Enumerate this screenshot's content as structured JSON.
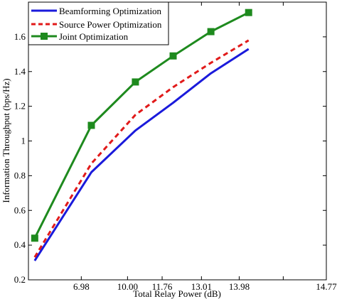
{
  "chart_data": {
    "type": "line",
    "xlabel": "Total Relay Power (dB)",
    "ylabel": "Information Throughput (bps/Hz)",
    "xlim": [
      5.3,
      14.77
    ],
    "ylim": [
      0.2,
      1.8
    ],
    "xticks": [
      {
        "value": 6.98,
        "label": "6.98"
      },
      {
        "value": 8.45,
        "label": "10.00"
      },
      {
        "value": 9.55,
        "label": "11.76"
      },
      {
        "value": 10.8,
        "label": "13.01"
      },
      {
        "value": 12.0,
        "label": "13.98"
      },
      {
        "value": 13.4,
        "label": "14.77"
      }
    ],
    "yticks": [
      0.2,
      0.4,
      0.6,
      0.8,
      1.0,
      1.2,
      1.4,
      1.6
    ],
    "ytick_labels": [
      "0.2",
      "0.4",
      "0.6",
      "0.8",
      "1",
      "1.2",
      "1.4",
      "1.6"
    ],
    "legend_position": "top-left",
    "grid": false,
    "series": [
      {
        "name": "Beamforming Optimization",
        "color": "#1a1adb",
        "dash": "solid",
        "marker": "none",
        "x": [
          5.5,
          7.3,
          8.7,
          9.9,
          11.1,
          12.3
        ],
        "y": [
          0.31,
          0.82,
          1.06,
          1.22,
          1.39,
          1.53
        ]
      },
      {
        "name": "Source Power Optimization",
        "color": "#e11a1a",
        "dash": "dashed",
        "marker": "none",
        "x": [
          5.5,
          7.3,
          8.7,
          9.9,
          11.1,
          12.3
        ],
        "y": [
          0.33,
          0.87,
          1.15,
          1.31,
          1.45,
          1.58
        ]
      },
      {
        "name": "Joint Optimization",
        "color": "#1e8a1e",
        "dash": "solid",
        "marker": "square",
        "x": [
          5.5,
          7.3,
          8.7,
          9.9,
          11.1,
          12.3
        ],
        "y": [
          0.44,
          1.09,
          1.34,
          1.49,
          1.63,
          1.74
        ]
      }
    ]
  }
}
